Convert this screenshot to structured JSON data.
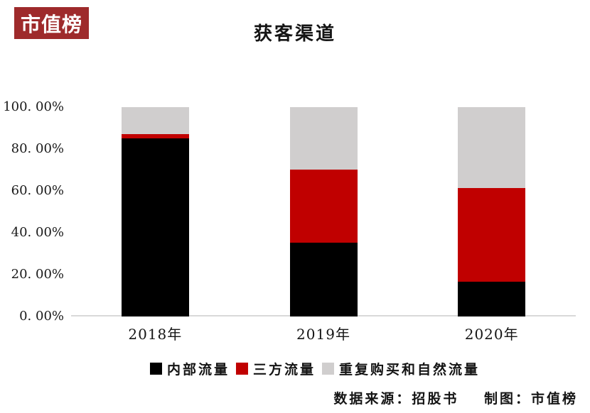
{
  "logo": {
    "text": "市值榜",
    "bg_color": "#9e2a2b",
    "text_color": "#ffffff"
  },
  "chart_data": {
    "type": "bar",
    "stacked": true,
    "title": "获客渠道",
    "categories": [
      "2018年",
      "2019年",
      "2020年"
    ],
    "series": [
      {
        "name": "内部流量",
        "color": "#000000",
        "values": [
          85.1,
          35.4,
          16.6
        ]
      },
      {
        "name": "三方流量",
        "color": "#c00000",
        "values": [
          1.9,
          34.8,
          44.9
        ]
      },
      {
        "name": "重复购买和自然流量",
        "color": "#d0cece",
        "values": [
          13.0,
          29.8,
          38.5
        ]
      }
    ],
    "unit": "%",
    "ylim": [
      0,
      100
    ],
    "y_ticks": [
      "100. 00%",
      "80. 00%",
      "60. 00%",
      "40. 00%",
      "20. 00%",
      "0. 00%"
    ],
    "grid": false,
    "axis_color": "#d9d9d9",
    "legend_position": "bottom"
  },
  "footer": {
    "source_label": "数据来源：招股书",
    "credit_label": "制图：市值榜"
  }
}
